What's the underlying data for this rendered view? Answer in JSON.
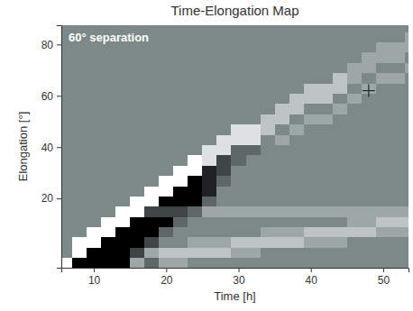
{
  "chart_data": {
    "type": "heatmap",
    "title": "Time-Elongation Map",
    "x_label": "Time [h]",
    "y_label": "Elongation [°]",
    "annotation": "60° separation",
    "xlim": [
      5.5,
      53.5
    ],
    "ylim": [
      -7,
      87.5
    ],
    "xticks": [
      10,
      20,
      30,
      40,
      50
    ],
    "yticks": [
      20,
      40,
      60,
      80
    ],
    "x_bins": [
      5,
      7,
      9,
      11,
      13,
      15,
      17,
      19,
      21,
      23,
      25,
      27,
      29,
      31,
      33,
      35,
      37,
      39,
      41,
      43,
      45,
      47,
      49,
      51,
      53,
      55
    ],
    "y_bins": [
      -7,
      -3,
      1,
      5,
      9,
      13,
      17,
      21,
      25,
      29,
      33,
      37,
      41,
      45,
      49,
      53,
      57,
      61,
      65,
      69,
      73,
      77,
      81,
      85,
      89
    ],
    "zlim": [
      -4,
      4
    ],
    "values": [
      [
        4,
        -4,
        -4,
        -4,
        -4,
        1,
        -1,
        1,
        1,
        0,
        0,
        0,
        0,
        0,
        0,
        0,
        0,
        0,
        0,
        0,
        0,
        0,
        0,
        0,
        0
      ],
      [
        0,
        4,
        -4,
        -4,
        -4,
        -2,
        1,
        2,
        2,
        2,
        2,
        2,
        1,
        1,
        0,
        0,
        0,
        0,
        0,
        0,
        0,
        0,
        0,
        0,
        0
      ],
      [
        0,
        4,
        4,
        -4,
        -4,
        -4,
        -2,
        0,
        0,
        1,
        1,
        1,
        2,
        2,
        2,
        2,
        2,
        1,
        1,
        1,
        0,
        0,
        0,
        0,
        0
      ],
      [
        0,
        0,
        4,
        4,
        -4,
        -4,
        -4,
        -1,
        0,
        0,
        0,
        0,
        0,
        0,
        1,
        1,
        1,
        2,
        2,
        2,
        2,
        2,
        1,
        1,
        1
      ],
      [
        0,
        0,
        0,
        4,
        4,
        -4,
        -4,
        -4,
        -1,
        0,
        0,
        0,
        0,
        0,
        0,
        0,
        0,
        0,
        0,
        0,
        1,
        1,
        2,
        2,
        2
      ],
      [
        0,
        0,
        0,
        0,
        4,
        4,
        -2,
        -2,
        -2,
        -1,
        1,
        1,
        1,
        1,
        1,
        1,
        1,
        1,
        1,
        1,
        1,
        1,
        1,
        1,
        1
      ],
      [
        0,
        0,
        0,
        0,
        0,
        4,
        4,
        -4,
        -4,
        -4,
        -1,
        0,
        0,
        0,
        0,
        0,
        0,
        0,
        0,
        0,
        0,
        0,
        0,
        0,
        0
      ],
      [
        0,
        0,
        0,
        0,
        0,
        0,
        4,
        4,
        -4,
        -4,
        -3,
        0,
        0,
        0,
        0,
        0,
        0,
        0,
        0,
        0,
        0,
        0,
        0,
        0,
        0
      ],
      [
        0,
        0,
        0,
        0,
        0,
        0,
        0,
        4,
        4,
        -4,
        -3,
        -1,
        0,
        0,
        0,
        0,
        0,
        0,
        0,
        0,
        0,
        0,
        0,
        0,
        0
      ],
      [
        0,
        0,
        0,
        0,
        0,
        0,
        0,
        0,
        4,
        4,
        -3,
        -2,
        0,
        0,
        0,
        0,
        0,
        0,
        0,
        0,
        0,
        0,
        0,
        0,
        0
      ],
      [
        0,
        0,
        0,
        0,
        0,
        0,
        0,
        0,
        0,
        4,
        3,
        -2,
        -1,
        0,
        0,
        0,
        0,
        0,
        0,
        0,
        0,
        0,
        0,
        0,
        0
      ],
      [
        0,
        0,
        0,
        0,
        0,
        0,
        0,
        0,
        0,
        0,
        3,
        3,
        -1,
        -1,
        0,
        0,
        0,
        0,
        0,
        0,
        0,
        0,
        0,
        0,
        0
      ],
      [
        0,
        0,
        0,
        0,
        0,
        0,
        0,
        0,
        0,
        0,
        0,
        3,
        3,
        3,
        0,
        1,
        0,
        0,
        0,
        0,
        0,
        0,
        0,
        0,
        0
      ],
      [
        0,
        0,
        0,
        0,
        0,
        0,
        0,
        0,
        0,
        0,
        0,
        0,
        3,
        3,
        2,
        0,
        1,
        0,
        0,
        0,
        0,
        0,
        0,
        0,
        0
      ],
      [
        0,
        0,
        0,
        0,
        0,
        0,
        0,
        0,
        0,
        0,
        0,
        0,
        0,
        0,
        2,
        2,
        0,
        1,
        1,
        0,
        0,
        0,
        0,
        0,
        0
      ],
      [
        0,
        0,
        0,
        0,
        0,
        0,
        0,
        0,
        0,
        0,
        0,
        0,
        0,
        0,
        0,
        2,
        2,
        0,
        0,
        1,
        0,
        0,
        0,
        0,
        0
      ],
      [
        0,
        0,
        0,
        0,
        0,
        0,
        0,
        0,
        0,
        0,
        0,
        0,
        0,
        0,
        0,
        0,
        2,
        2,
        2,
        0,
        1,
        0,
        0,
        0,
        0
      ],
      [
        0,
        0,
        0,
        0,
        0,
        0,
        0,
        0,
        0,
        0,
        0,
        0,
        0,
        0,
        0,
        0,
        0,
        2,
        2,
        2,
        0,
        1,
        0,
        0,
        0
      ],
      [
        0,
        0,
        0,
        0,
        0,
        0,
        0,
        0,
        0,
        0,
        0,
        0,
        0,
        0,
        0,
        0,
        0,
        0,
        0,
        2,
        1,
        0,
        1,
        1,
        0
      ],
      [
        0,
        0,
        0,
        0,
        0,
        0,
        0,
        0,
        0,
        0,
        0,
        0,
        0,
        0,
        0,
        0,
        0,
        0,
        0,
        0,
        1,
        1,
        0,
        0,
        1
      ],
      [
        0,
        0,
        0,
        0,
        0,
        0,
        0,
        0,
        0,
        0,
        0,
        0,
        0,
        0,
        0,
        0,
        0,
        0,
        0,
        0,
        0,
        1,
        1,
        1,
        0
      ],
      [
        0,
        0,
        0,
        0,
        0,
        0,
        0,
        0,
        0,
        0,
        0,
        0,
        0,
        0,
        0,
        0,
        0,
        0,
        0,
        0,
        0,
        0,
        1,
        1,
        1
      ],
      [
        0,
        0,
        0,
        0,
        0,
        0,
        0,
        0,
        0,
        0,
        0,
        0,
        0,
        0,
        0,
        0,
        0,
        0,
        0,
        0,
        0,
        0,
        0,
        0,
        1
      ],
      [
        0,
        0,
        0,
        0,
        0,
        0,
        0,
        0,
        0,
        0,
        0,
        0,
        0,
        0,
        0,
        0,
        0,
        0,
        0,
        0,
        0,
        0,
        0,
        0,
        0
      ]
    ],
    "points": {
      "x": [
        48
      ],
      "y": [
        62
      ],
      "marker": "plus"
    }
  }
}
